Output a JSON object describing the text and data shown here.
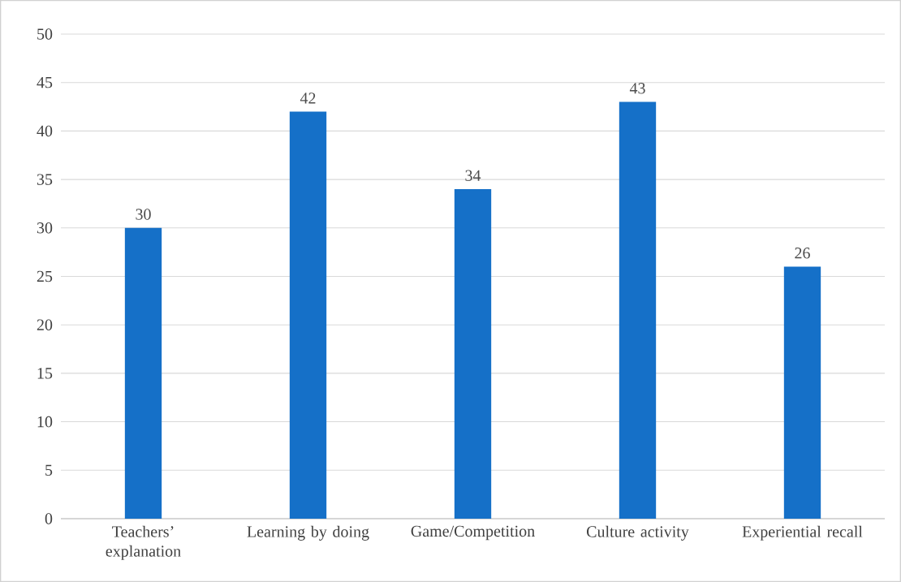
{
  "chart_data": {
    "type": "bar",
    "categories": [
      "Teachers’ explanation",
      "Learning by doing",
      "Game/Competition",
      "Culture activity",
      "Experiential recall"
    ],
    "values": [
      30,
      42,
      34,
      43,
      26
    ],
    "color": "#1570c8",
    "ylim": [
      0,
      50
    ],
    "yticks": [
      0,
      5,
      10,
      15,
      20,
      25,
      30,
      35,
      40,
      45,
      50
    ],
    "grid": "y",
    "data_labels": true
  }
}
